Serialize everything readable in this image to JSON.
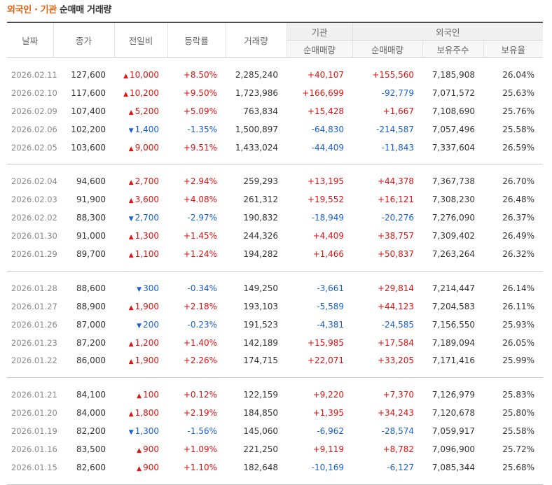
{
  "title": {
    "foreign": "외국인",
    "dot": "·",
    "inst": "기관",
    "rest": "순매매 거래량"
  },
  "headers": {
    "date": "날짜",
    "close": "종가",
    "change": "전일비",
    "rate": "등락률",
    "volume": "거래량",
    "inst_group": "기관",
    "inst_net": "순매매량",
    "foreign_group": "외국인",
    "foreign_net": "순매매량",
    "foreign_hold": "보유주수",
    "foreign_ratio": "보유율"
  },
  "colors": {
    "up": "#e21212",
    "down": "#1a5fd6",
    "accent": "#e8610d"
  },
  "groups": [
    [
      {
        "date": "2026.02.11",
        "close": "127,600",
        "dir": "up",
        "change": "10,000",
        "rate": "+8.50%",
        "volume": "2,285,240",
        "inst": "+40,107",
        "foreign": "+155,560",
        "hold": "7,185,908",
        "ratio": "26.04%"
      },
      {
        "date": "2026.02.10",
        "close": "117,600",
        "dir": "up",
        "change": "10,200",
        "rate": "+9.50%",
        "volume": "1,723,986",
        "inst": "+166,699",
        "foreign": "-92,779",
        "hold": "7,071,572",
        "ratio": "25.63%"
      },
      {
        "date": "2026.02.09",
        "close": "107,400",
        "dir": "up",
        "change": "5,200",
        "rate": "+5.09%",
        "volume": "763,834",
        "inst": "+15,428",
        "foreign": "+1,667",
        "hold": "7,108,690",
        "ratio": "25.76%"
      },
      {
        "date": "2026.02.06",
        "close": "102,200",
        "dir": "down",
        "change": "1,400",
        "rate": "-1.35%",
        "volume": "1,500,897",
        "inst": "-64,830",
        "foreign": "-214,587",
        "hold": "7,057,496",
        "ratio": "25.58%"
      },
      {
        "date": "2026.02.05",
        "close": "103,600",
        "dir": "up",
        "change": "9,000",
        "rate": "+9.51%",
        "volume": "1,433,024",
        "inst": "-44,409",
        "foreign": "-11,843",
        "hold": "7,337,604",
        "ratio": "26.59%"
      }
    ],
    [
      {
        "date": "2026.02.04",
        "close": "94,600",
        "dir": "up",
        "change": "2,700",
        "rate": "+2.94%",
        "volume": "259,293",
        "inst": "+13,195",
        "foreign": "+44,378",
        "hold": "7,367,738",
        "ratio": "26.70%"
      },
      {
        "date": "2026.02.03",
        "close": "91,900",
        "dir": "up",
        "change": "3,600",
        "rate": "+4.08%",
        "volume": "261,312",
        "inst": "+19,552",
        "foreign": "+16,121",
        "hold": "7,308,230",
        "ratio": "26.48%"
      },
      {
        "date": "2026.02.02",
        "close": "88,300",
        "dir": "down",
        "change": "2,700",
        "rate": "-2.97%",
        "volume": "190,832",
        "inst": "-18,949",
        "foreign": "-20,276",
        "hold": "7,276,090",
        "ratio": "26.37%"
      },
      {
        "date": "2026.01.30",
        "close": "91,000",
        "dir": "up",
        "change": "1,300",
        "rate": "+1.45%",
        "volume": "244,326",
        "inst": "+4,409",
        "foreign": "+38,757",
        "hold": "7,309,402",
        "ratio": "26.49%"
      },
      {
        "date": "2026.01.29",
        "close": "89,700",
        "dir": "up",
        "change": "1,100",
        "rate": "+1.24%",
        "volume": "194,282",
        "inst": "+1,466",
        "foreign": "+50,837",
        "hold": "7,263,264",
        "ratio": "26.32%"
      }
    ],
    [
      {
        "date": "2026.01.28",
        "close": "88,600",
        "dir": "down",
        "change": "300",
        "rate": "-0.34%",
        "volume": "149,250",
        "inst": "-3,661",
        "foreign": "+29,814",
        "hold": "7,214,447",
        "ratio": "26.14%"
      },
      {
        "date": "2026.01.27",
        "close": "88,900",
        "dir": "up",
        "change": "1,900",
        "rate": "+2.18%",
        "volume": "193,103",
        "inst": "-5,589",
        "foreign": "+44,123",
        "hold": "7,204,583",
        "ratio": "26.11%"
      },
      {
        "date": "2026.01.26",
        "close": "87,000",
        "dir": "down",
        "change": "200",
        "rate": "-0.23%",
        "volume": "191,523",
        "inst": "-4,381",
        "foreign": "-24,585",
        "hold": "7,156,550",
        "ratio": "25.93%"
      },
      {
        "date": "2026.01.23",
        "close": "87,200",
        "dir": "up",
        "change": "1,200",
        "rate": "+1.40%",
        "volume": "142,189",
        "inst": "+15,985",
        "foreign": "+17,584",
        "hold": "7,189,094",
        "ratio": "26.05%"
      },
      {
        "date": "2026.01.22",
        "close": "86,000",
        "dir": "up",
        "change": "1,900",
        "rate": "+2.26%",
        "volume": "174,715",
        "inst": "+22,071",
        "foreign": "+33,205",
        "hold": "7,171,416",
        "ratio": "25.99%"
      }
    ],
    [
      {
        "date": "2026.01.21",
        "close": "84,100",
        "dir": "up",
        "change": "100",
        "rate": "+0.12%",
        "volume": "122,159",
        "inst": "+9,220",
        "foreign": "+7,370",
        "hold": "7,126,979",
        "ratio": "25.83%"
      },
      {
        "date": "2026.01.20",
        "close": "84,000",
        "dir": "up",
        "change": "1,800",
        "rate": "+2.19%",
        "volume": "184,850",
        "inst": "+1,395",
        "foreign": "+34,243",
        "hold": "7,120,678",
        "ratio": "25.80%"
      },
      {
        "date": "2026.01.19",
        "close": "82,200",
        "dir": "down",
        "change": "1,300",
        "rate": "-1.56%",
        "volume": "145,060",
        "inst": "-6,962",
        "foreign": "-28,574",
        "hold": "7,059,917",
        "ratio": "25.58%"
      },
      {
        "date": "2026.01.16",
        "close": "83,500",
        "dir": "up",
        "change": "900",
        "rate": "+1.09%",
        "volume": "221,250",
        "inst": "+9,119",
        "foreign": "+8,782",
        "hold": "7,096,900",
        "ratio": "25.72%"
      },
      {
        "date": "2026.01.15",
        "close": "82,600",
        "dir": "up",
        "change": "900",
        "rate": "+1.10%",
        "volume": "182,648",
        "inst": "-10,169",
        "foreign": "-6,127",
        "hold": "7,085,344",
        "ratio": "25.68%"
      }
    ]
  ]
}
